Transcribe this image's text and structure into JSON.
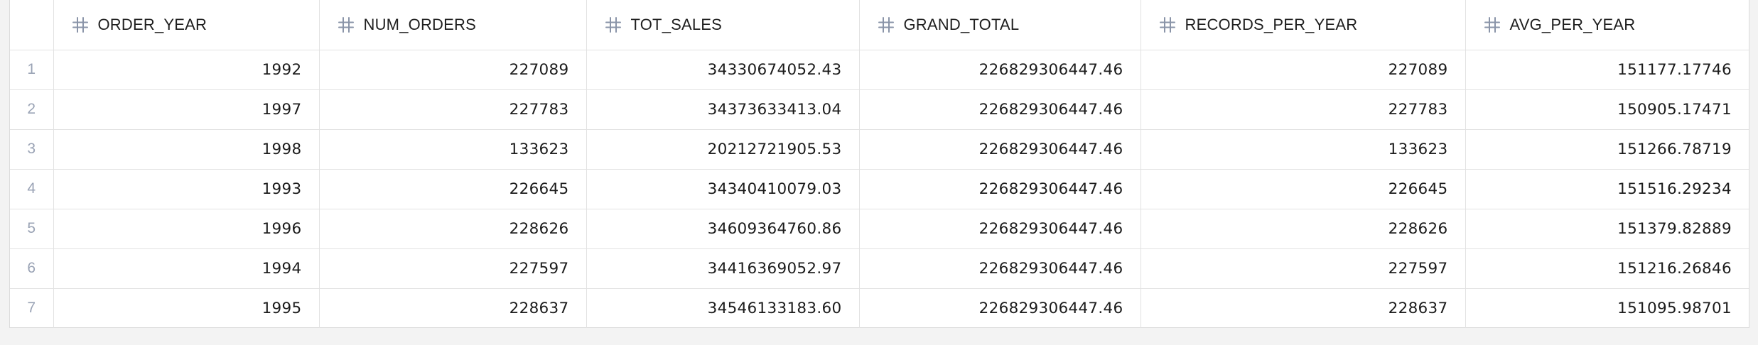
{
  "grid": {
    "columns": [
      {
        "label": "ORDER_YEAR",
        "type_icon": "hash-icon"
      },
      {
        "label": "NUM_ORDERS",
        "type_icon": "hash-icon"
      },
      {
        "label": "TOT_SALES",
        "type_icon": "hash-icon"
      },
      {
        "label": "GRAND_TOTAL",
        "type_icon": "hash-icon"
      },
      {
        "label": "RECORDS_PER_YEAR",
        "type_icon": "hash-icon"
      },
      {
        "label": "AVG_PER_YEAR",
        "type_icon": "hash-icon"
      }
    ],
    "rows": [
      {
        "num": "1",
        "cells": [
          "1992",
          "227089",
          "34330674052.43",
          "226829306447.46",
          "227089",
          "151177.17746"
        ]
      },
      {
        "num": "2",
        "cells": [
          "1997",
          "227783",
          "34373633413.04",
          "226829306447.46",
          "227783",
          "150905.17471"
        ]
      },
      {
        "num": "3",
        "cells": [
          "1998",
          "133623",
          "20212721905.53",
          "226829306447.46",
          "133623",
          "151266.78719"
        ]
      },
      {
        "num": "4",
        "cells": [
          "1993",
          "226645",
          "34340410079.03",
          "226829306447.46",
          "226645",
          "151516.29234"
        ]
      },
      {
        "num": "5",
        "cells": [
          "1996",
          "228626",
          "34609364760.86",
          "226829306447.46",
          "228626",
          "151379.82889"
        ]
      },
      {
        "num": "6",
        "cells": [
          "1994",
          "227597",
          "34416369052.97",
          "226829306447.46",
          "227597",
          "151216.26846"
        ]
      },
      {
        "num": "7",
        "cells": [
          "1995",
          "228637",
          "34546133183.60",
          "226829306447.46",
          "228637",
          "151095.98701"
        ]
      }
    ]
  },
  "colors": {
    "icon": "#8a94a8",
    "row_number": "#9aa3b5",
    "border": "#e2e2e2",
    "background": "#f3f3f3"
  }
}
